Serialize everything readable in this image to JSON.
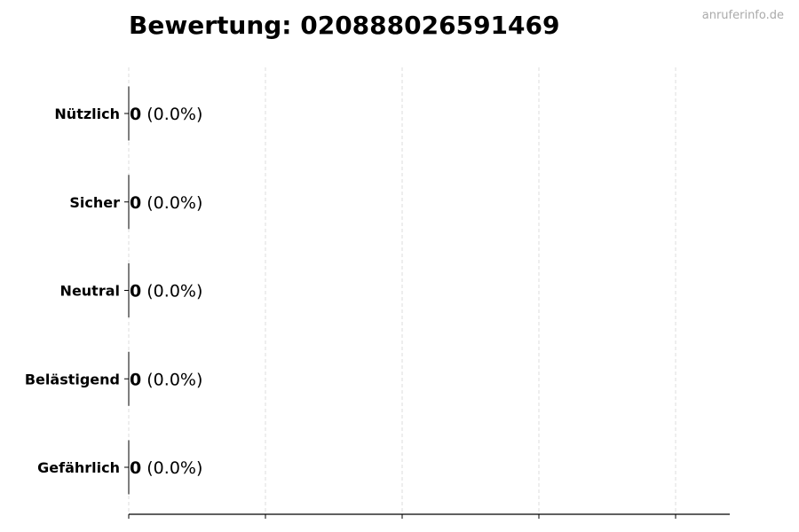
{
  "watermark": "anruferinfo.de",
  "chart_data": {
    "type": "bar",
    "orientation": "horizontal",
    "title": "Bewertung: 020888026591469",
    "categories": [
      "Nützlich",
      "Sicher",
      "Neutral",
      "Belästigend",
      "Gefährlich"
    ],
    "values": [
      0,
      0,
      0,
      0,
      0
    ],
    "percent_labels": [
      "(0.0%)",
      "(0.0%)",
      "(0.0%)",
      "(0.0%)",
      "(0.0%)"
    ],
    "xlabel": "",
    "ylabel": "",
    "x_ticks": 5,
    "grid": "x, dashed",
    "colors": {
      "bar_edge": "#000000",
      "grid": "#dddddd",
      "axis": "#000000"
    }
  }
}
